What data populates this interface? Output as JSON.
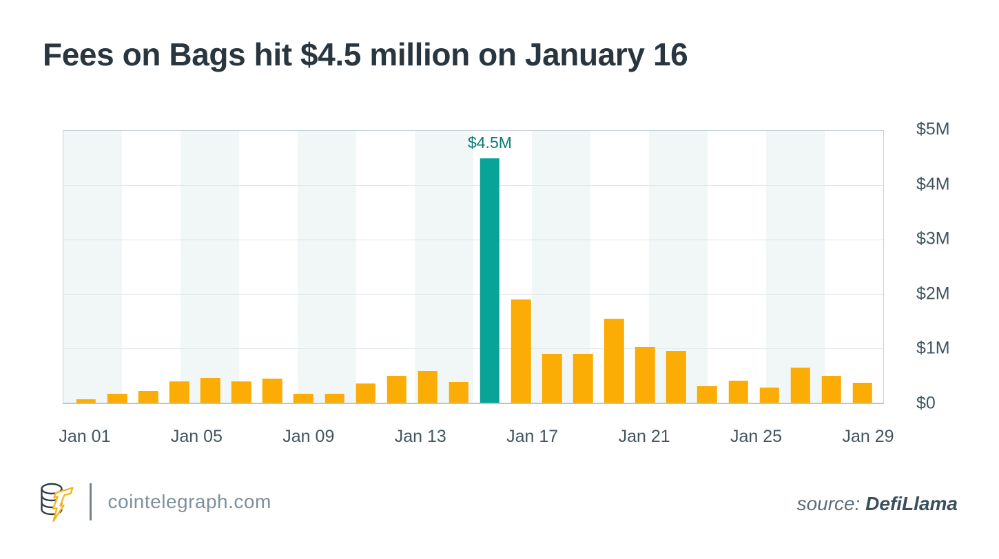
{
  "title": "Fees on Bags hit $4.5 million on January 16",
  "chart_data": {
    "type": "bar",
    "title": "Fees on Bags hit $4.5 million on January 16",
    "x_tick_labels": [
      "Jan 01",
      "Jan 05",
      "Jan 09",
      "Jan 13",
      "Jan 17",
      "Jan 21",
      "Jan 25",
      "Jan 29"
    ],
    "y_tick_labels": [
      "$5M",
      "$4M",
      "$3M",
      "$2M",
      "$1M",
      "$0"
    ],
    "ylim": [
      0,
      5
    ],
    "ylabel": "",
    "xlabel": "",
    "legend": "none",
    "grid": "horizontal",
    "background_stripes": true,
    "values_unit": "USD millions",
    "values": [
      0.06,
      0.17,
      0.21,
      0.39,
      0.45,
      0.39,
      0.44,
      0.17,
      0.17,
      0.35,
      0.5,
      0.58,
      0.38,
      4.5,
      1.9,
      0.9,
      0.9,
      1.55,
      1.03,
      0.95,
      0.31,
      0.41,
      0.28,
      0.64,
      0.5,
      0.37
    ],
    "bar_color": "#FBAC05",
    "highlight": {
      "index": 13,
      "value": 4.5,
      "color": "#07A497",
      "label": "$4.5M",
      "label_color": "#077C72"
    },
    "colors": {
      "title_text": "#29363f",
      "axis_text": "#41555f",
      "gridline": "#e0e8eb",
      "plot_border": "#c6d2d9",
      "baseline": "#b7c4cc",
      "stripe": "#f1f6f7"
    }
  },
  "footer": {
    "site": "cointelegraph.com",
    "source_label": "source:",
    "source_name": "DefiLlama"
  }
}
